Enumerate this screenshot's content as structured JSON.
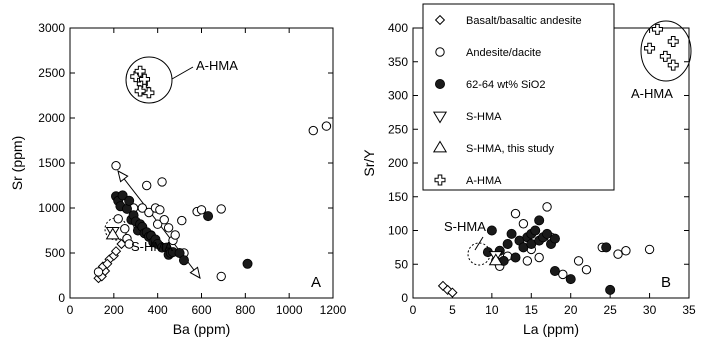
{
  "chart_data": [
    {
      "type": "scatter",
      "panel_label": "A",
      "xlabel": "Ba (ppm)",
      "ylabel": "Sr (ppm)",
      "xlim": [
        0,
        1200
      ],
      "ylim": [
        0,
        3000
      ],
      "xticks": [
        0,
        200,
        400,
        600,
        800,
        1000,
        1200
      ],
      "yticks": [
        0,
        500,
        1000,
        1500,
        2000,
        2500,
        3000
      ],
      "annotations": [
        {
          "text": "A-HMA"
        },
        {
          "text": "S-HMA"
        }
      ],
      "series": [
        {
          "name": "Basalt/basaltic andesite",
          "marker": "diamond",
          "points": [
            [
              130,
              220
            ],
            [
              140,
              260
            ],
            [
              145,
              240
            ],
            [
              160,
              300
            ],
            [
              150,
              350
            ],
            [
              180,
              430
            ],
            [
              200,
              470
            ],
            [
              210,
              520
            ],
            [
              235,
              600
            ],
            [
              170,
              380
            ]
          ]
        },
        {
          "name": "Andesite/dacite",
          "marker": "circle-open",
          "points": [
            [
              130,
              290
            ],
            [
              210,
              1470
            ],
            [
              220,
              880
            ],
            [
              250,
              770
            ],
            [
              260,
              660
            ],
            [
              270,
              600
            ],
            [
              290,
              1000
            ],
            [
              310,
              800
            ],
            [
              330,
              1000
            ],
            [
              350,
              1250
            ],
            [
              360,
              950
            ],
            [
              370,
              700
            ],
            [
              390,
              1000
            ],
            [
              400,
              820
            ],
            [
              410,
              980
            ],
            [
              420,
              1290
            ],
            [
              430,
              870
            ],
            [
              450,
              780
            ],
            [
              470,
              640
            ],
            [
              480,
              700
            ],
            [
              510,
              860
            ],
            [
              520,
              500
            ],
            [
              580,
              960
            ],
            [
              600,
              980
            ],
            [
              690,
              990
            ],
            [
              690,
              240
            ],
            [
              1110,
              1860
            ],
            [
              1170,
              1910
            ]
          ]
        },
        {
          "name": "62-64 wt% SiO2",
          "marker": "circle-filled",
          "points": [
            [
              210,
              1130
            ],
            [
              220,
              1080
            ],
            [
              230,
              1020
            ],
            [
              240,
              1140
            ],
            [
              260,
              990
            ],
            [
              270,
              1080
            ],
            [
              280,
              870
            ],
            [
              290,
              920
            ],
            [
              300,
              850
            ],
            [
              310,
              750
            ],
            [
              320,
              820
            ],
            [
              330,
              790
            ],
            [
              340,
              720
            ],
            [
              350,
              730
            ],
            [
              360,
              680
            ],
            [
              370,
              690
            ],
            [
              380,
              620
            ],
            [
              390,
              650
            ],
            [
              400,
              600
            ],
            [
              420,
              560
            ],
            [
              440,
              560
            ],
            [
              450,
              480
            ],
            [
              460,
              500
            ],
            [
              470,
              510
            ],
            [
              500,
              500
            ],
            [
              520,
              420
            ],
            [
              630,
              910
            ],
            [
              810,
              380
            ]
          ]
        },
        {
          "name": "S-HMA",
          "marker": "triangle-down",
          "points": [
            [
              195,
              740
            ]
          ]
        },
        {
          "name": "S-HMA, this study",
          "marker": "triangle-up",
          "points": [
            [
              195,
              700
            ]
          ]
        },
        {
          "name": "A-HMA",
          "marker": "cross",
          "points": [
            [
              300,
              2460
            ],
            [
              320,
              2520
            ],
            [
              330,
              2380
            ],
            [
              340,
              2320
            ],
            [
              360,
              2280
            ],
            [
              340,
              2430
            ],
            [
              320,
              2300
            ]
          ]
        }
      ]
    },
    {
      "type": "scatter",
      "panel_label": "B",
      "xlabel": "La (ppm)",
      "ylabel": "Sr/Y",
      "xlim": [
        0,
        35
      ],
      "ylim": [
        0,
        400
      ],
      "xticks": [
        0,
        5,
        10,
        15,
        20,
        25,
        30,
        35
      ],
      "yticks": [
        0,
        50,
        100,
        150,
        200,
        250,
        300,
        350,
        400
      ],
      "annotations": [
        {
          "text": "A-HMA"
        },
        {
          "text": "S-HMA"
        }
      ],
      "series": [
        {
          "name": "Basalt/basaltic andesite",
          "marker": "diamond",
          "points": [
            [
              3.8,
              18
            ],
            [
              4.4,
              12
            ],
            [
              5.0,
              8
            ]
          ]
        },
        {
          "name": "Andesite/dacite",
          "marker": "circle-open",
          "points": [
            [
              10.5,
              55
            ],
            [
              11,
              47
            ],
            [
              12,
              62
            ],
            [
              13,
              125
            ],
            [
              14,
              110
            ],
            [
              14.5,
              55
            ],
            [
              15,
              72
            ],
            [
              16,
              60
            ],
            [
              17,
              135
            ],
            [
              17.5,
              90
            ],
            [
              19,
              35
            ],
            [
              21,
              55
            ],
            [
              22,
              42
            ],
            [
              24,
              75
            ],
            [
              26,
              65
            ],
            [
              27,
              70
            ],
            [
              30,
              72
            ]
          ]
        },
        {
          "name": "62-64 wt% SiO2",
          "marker": "circle-filled",
          "points": [
            [
              9.5,
              68
            ],
            [
              10,
              100
            ],
            [
              11,
              70
            ],
            [
              11.5,
              55
            ],
            [
              12,
              80
            ],
            [
              12.5,
              95
            ],
            [
              13,
              60
            ],
            [
              13.5,
              85
            ],
            [
              14,
              75
            ],
            [
              14.5,
              90
            ],
            [
              15,
              95
            ],
            [
              15,
              80
            ],
            [
              15.5,
              100
            ],
            [
              16,
              85
            ],
            [
              16,
              115
            ],
            [
              16.5,
              90
            ],
            [
              17,
              95
            ],
            [
              17.5,
              80
            ],
            [
              18,
              40
            ],
            [
              18,
              88
            ],
            [
              20,
              28
            ],
            [
              24.5,
              75
            ],
            [
              25,
              12
            ]
          ]
        },
        {
          "name": "S-HMA",
          "marker": "triangle-down",
          "points": [
            [
              10.5,
              63
            ]
          ]
        },
        {
          "name": "S-HMA, this study",
          "marker": "triangle-up",
          "points": [
            [
              10.5,
              55
            ]
          ]
        },
        {
          "name": "A-HMA",
          "marker": "cross",
          "points": [
            [
              31,
              398
            ],
            [
              30,
              370
            ],
            [
              33,
              380
            ],
            [
              32,
              358
            ],
            [
              33,
              345
            ]
          ]
        }
      ]
    }
  ],
  "legend": [
    {
      "label": "Basalt/basaltic andesite",
      "marker": "diamond"
    },
    {
      "label": "Andesite/dacite",
      "marker": "circle-open"
    },
    {
      "label": "62-64 wt% SiO2",
      "marker": "circle-filled"
    },
    {
      "label": "S-HMA",
      "marker": "triangle-down"
    },
    {
      "label": "S-HMA, this study",
      "marker": "triangle-up"
    },
    {
      "label": "A-HMA",
      "marker": "cross"
    }
  ],
  "colors": {
    "ink": "#000000",
    "fill": "#1a1a1a",
    "background": "#ffffff"
  }
}
